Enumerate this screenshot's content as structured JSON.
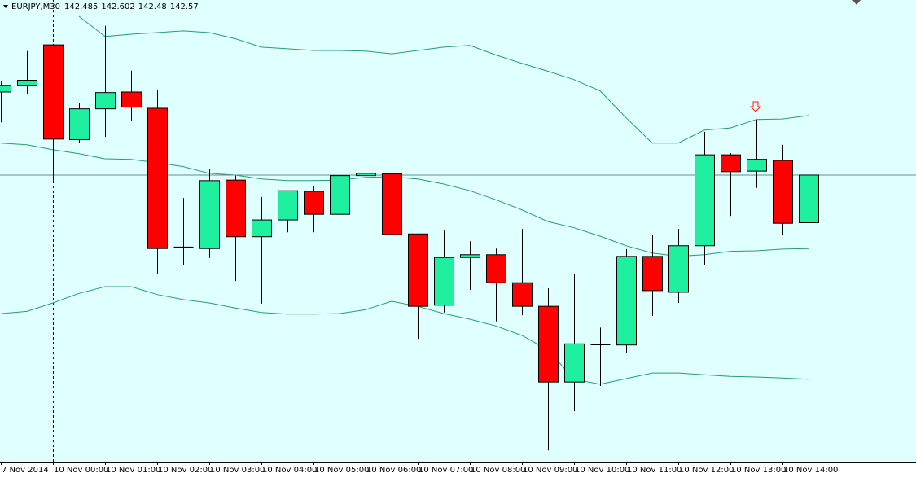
{
  "chart_data": {
    "type": "candlestick",
    "title": "EURJPY,M30",
    "categories": [
      "7 Nov 2014",
      null,
      "10 Nov 00:00",
      null,
      "10 Nov 01:00",
      null,
      "10 Nov 02:00",
      null,
      "10 Nov 03:00",
      null,
      "10 Nov 04:00",
      null,
      "10 Nov 05:00",
      null,
      "10 Nov 06:00",
      null,
      "10 Nov 07:00",
      null,
      "10 Nov 08:00",
      null,
      "10 Nov 09:00",
      null,
      "10 Nov 10:00",
      null,
      "10 Nov 11:00",
      null,
      "10 Nov 12:00",
      null,
      "10 Nov 13:00",
      null,
      "10 Nov 14:00",
      null
    ],
    "open": [
      142.718,
      142.73,
      142.802,
      142.633,
      142.688,
      142.718,
      142.689,
      142.441,
      142.439,
      142.561,
      142.46,
      142.49,
      142.541,
      142.5,
      142.569,
      142.572,
      142.465,
      142.338,
      142.423,
      142.428,
      142.378,
      142.336,
      142.201,
      142.268,
      142.267,
      142.425,
      142.361,
      142.444,
      142.606,
      142.577,
      142.596,
      142.485
    ],
    "high": [
      142.737,
      142.791,
      142.802,
      142.699,
      142.836,
      142.756,
      142.721,
      142.529,
      142.58,
      142.569,
      142.531,
      142.542,
      142.55,
      142.59,
      142.635,
      142.605,
      142.465,
      142.471,
      142.452,
      142.439,
      142.474,
      142.368,
      142.394,
      142.298,
      142.438,
      142.463,
      142.474,
      142.647,
      142.609,
      142.669,
      142.624,
      142.602
    ],
    "low": [
      142.664,
      142.714,
      142.56,
      142.627,
      142.638,
      142.667,
      142.394,
      142.41,
      142.422,
      142.381,
      142.341,
      142.468,
      142.468,
      142.468,
      142.542,
      142.438,
      142.278,
      142.325,
      142.365,
      142.309,
      142.32,
      142.079,
      142.149,
      142.194,
      142.252,
      142.319,
      142.342,
      142.41,
      142.497,
      142.547,
      142.463,
      142.48
    ],
    "close": [
      142.73,
      142.739,
      142.634,
      142.688,
      142.717,
      142.691,
      142.439,
      142.441,
      142.56,
      142.46,
      142.49,
      142.542,
      142.5,
      142.569,
      142.573,
      142.464,
      142.336,
      142.423,
      142.428,
      142.378,
      142.336,
      142.201,
      142.269,
      142.268,
      142.425,
      142.364,
      142.444,
      142.606,
      142.576,
      142.598,
      142.484,
      142.57
    ],
    "up_color": "#1ef0a0",
    "down_color": "#ff0000",
    "doji_color": "#000000",
    "background": "#e0ffff",
    "bands": {
      "color": "#22a06a",
      "upper": [
        null,
        null,
        null,
        142.853,
        142.817,
        142.821,
        142.824,
        142.827,
        142.824,
        142.813,
        142.798,
        142.795,
        142.792,
        142.792,
        142.791,
        142.786,
        142.792,
        142.798,
        142.801,
        142.784,
        142.769,
        142.755,
        142.74,
        142.72,
        142.672,
        142.627,
        142.627,
        142.65,
        142.654,
        142.669,
        142.67,
        142.676
      ],
      "middle": [
        142.627,
        142.624,
        142.615,
        142.608,
        142.599,
        142.598,
        142.592,
        142.585,
        142.573,
        142.57,
        142.563,
        142.56,
        142.56,
        142.561,
        142.566,
        142.567,
        142.563,
        142.554,
        142.542,
        142.526,
        142.508,
        142.487,
        142.476,
        142.461,
        142.444,
        142.431,
        142.425,
        142.428,
        142.434,
        142.435,
        142.438,
        142.439
      ],
      "lower": [
        142.323,
        142.327,
        142.342,
        142.359,
        142.371,
        142.371,
        142.357,
        142.348,
        142.342,
        142.333,
        142.325,
        142.322,
        142.322,
        142.323,
        142.33,
        142.345,
        142.336,
        142.323,
        142.313,
        142.301,
        142.284,
        142.258,
        142.206,
        142.197,
        142.207,
        142.217,
        142.217,
        142.214,
        142.211,
        142.21,
        142.208,
        142.206
      ]
    },
    "ylim": [
      142.059,
      142.882
    ]
  }
}
